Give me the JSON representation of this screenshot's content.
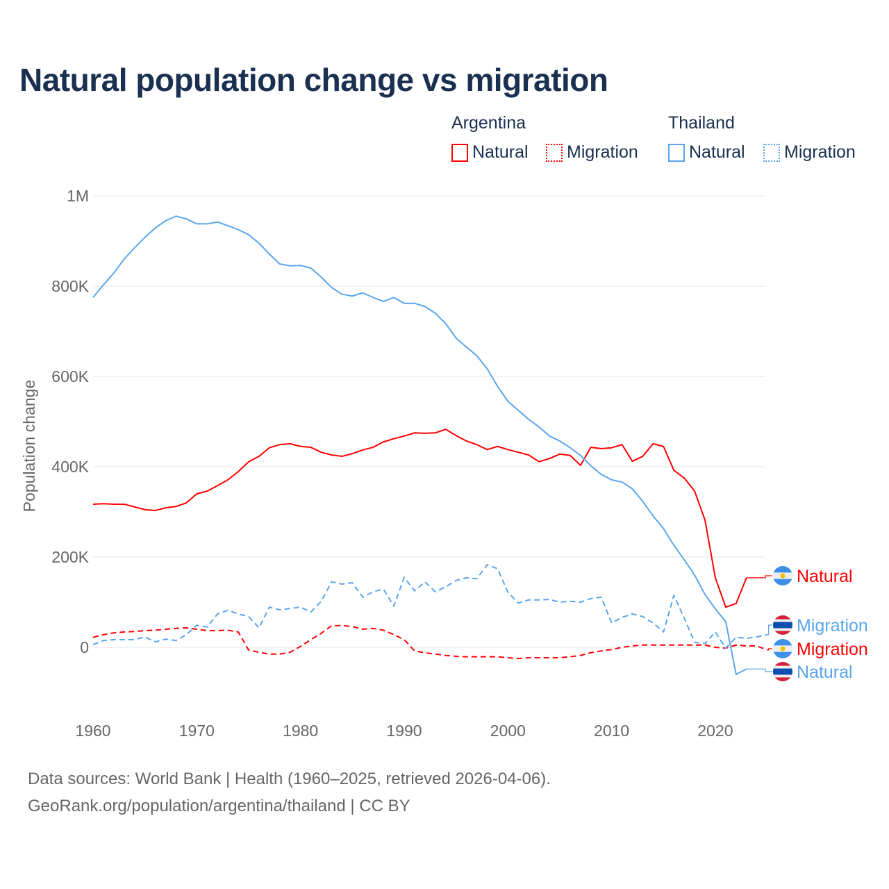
{
  "title": "Natural population change vs migration",
  "legend": {
    "groups": [
      {
        "name": "Argentina",
        "items": [
          "Natural",
          "Migration"
        ],
        "color": "#ff0000"
      },
      {
        "name": "Thailand",
        "items": [
          "Natural",
          "Migration"
        ],
        "color": "#5aa5ea"
      }
    ]
  },
  "source_lines": [
    "Data sources: World Bank | Health (1960–2025, retrieved 2026-04-06).",
    "GeoRank.org/population/argentina/thailand | CC BY"
  ],
  "chart_data": {
    "type": "line",
    "title": "Natural population change vs migration",
    "xlabel": "",
    "ylabel": "Population change",
    "xlim": [
      1960,
      2025
    ],
    "ylim": [
      -100000,
      1000000
    ],
    "x_ticks": [
      1960,
      1970,
      1980,
      1990,
      2000,
      2010,
      2020
    ],
    "y_ticks": [
      {
        "v": 0,
        "label": "0"
      },
      {
        "v": 200000,
        "label": "200K"
      },
      {
        "v": 400000,
        "label": "400K"
      },
      {
        "v": 600000,
        "label": "600K"
      },
      {
        "v": 800000,
        "label": "800K"
      },
      {
        "v": 1000000,
        "label": "1M"
      }
    ],
    "grid": true,
    "legend_position": "top-right",
    "series": [
      {
        "name": "Natural",
        "country": "Argentina",
        "color": "#ff0000",
        "dash": false,
        "start": 1960,
        "end_label_y": 154000,
        "values_k": [
          317,
          318,
          317,
          317,
          311,
          305,
          303,
          309,
          312,
          320,
          340,
          346,
          358,
          371,
          389,
          411,
          423,
          442,
          449,
          451,
          445,
          443,
          432,
          426,
          423,
          429,
          437,
          443,
          455,
          462,
          468,
          475,
          474,
          475,
          483,
          469,
          457,
          449,
          438,
          445,
          438,
          432,
          426,
          411,
          418,
          428,
          425,
          403,
          443,
          440,
          442,
          449,
          412,
          423,
          451,
          445,
          392,
          375,
          346,
          282,
          154,
          89,
          97,
          154
        ]
      },
      {
        "name": "Migration",
        "country": "Argentina",
        "color": "#ff0000",
        "dash": true,
        "start": 1960,
        "end_label_y": -3000,
        "values_k": [
          22,
          28,
          32,
          34,
          35,
          37,
          38,
          40,
          42,
          43,
          40,
          37,
          37,
          38,
          34,
          -6,
          -11,
          -15,
          -15,
          -11,
          2,
          17,
          31,
          48,
          48,
          46,
          40,
          42,
          38,
          28,
          17,
          -8,
          -12,
          -15,
          -18,
          -20,
          -21,
          -21,
          -21,
          -21,
          -23,
          -25,
          -23,
          -23,
          -23,
          -23,
          -21,
          -18,
          -12,
          -8,
          -5,
          0,
          3,
          5,
          5,
          5,
          5,
          5,
          5,
          5,
          0,
          -2,
          5,
          3,
          3,
          -6
        ]
      },
      {
        "name": "Natural",
        "country": "Thailand",
        "color": "#5aa5ea",
        "dash": false,
        "start": 1960,
        "end_label_y": -54000,
        "values_k": [
          775,
          803,
          829,
          860,
          885,
          908,
          929,
          945,
          955,
          949,
          938,
          938,
          942,
          934,
          925,
          914,
          895,
          871,
          849,
          845,
          846,
          840,
          820,
          797,
          782,
          778,
          785,
          775,
          766,
          775,
          762,
          762,
          755,
          740,
          717,
          685,
          665,
          646,
          617,
          578,
          545,
          525,
          505,
          488,
          468,
          457,
          442,
          425,
          402,
          383,
          371,
          366,
          351,
          323,
          291,
          263,
          226,
          194,
          160,
          117,
          85,
          57,
          -60,
          -48
        ]
      },
      {
        "name": "Migration",
        "country": "Thailand",
        "color": "#5aa5ea",
        "dash": true,
        "start": 1960,
        "end_label_y": 49000,
        "values_k": [
          6,
          15,
          17,
          17,
          17,
          23,
          12,
          18,
          15,
          28,
          49,
          45,
          74,
          82,
          74,
          68,
          43,
          89,
          83,
          86,
          89,
          78,
          102,
          145,
          140,
          143,
          111,
          123,
          129,
          91,
          155,
          125,
          145,
          123,
          134,
          148,
          154,
          152,
          183,
          174,
          122,
          98,
          105,
          105,
          106,
          100,
          102,
          100,
          108,
          111,
          54,
          66,
          74,
          68,
          54,
          34,
          115,
          65,
          11,
          8,
          34,
          -2,
          22,
          20,
          23,
          28
        ]
      }
    ]
  }
}
